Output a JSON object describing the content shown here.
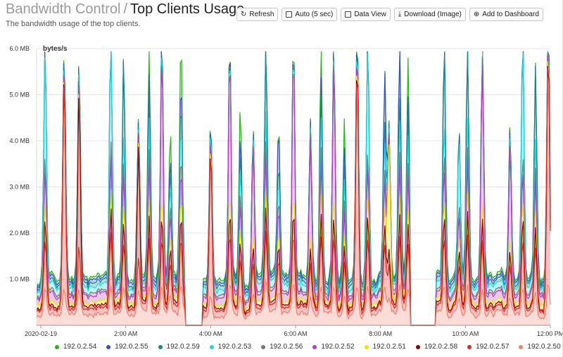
{
  "header": {
    "crumb": "Bandwidth Control",
    "separator": "/",
    "title": "Top Clients Usage",
    "subtitle": "The bandwidth usage of the top clients."
  },
  "toolbar": {
    "refresh": "Refresh",
    "auto": "Auto (5 sec)",
    "data_view": "Data View",
    "download": "Download (Image)",
    "add_dashboard": "Add to Dashboard"
  },
  "chart_data": {
    "type": "area",
    "stacked": true,
    "ylabel": "bytes/s",
    "ylim": [
      0,
      6000000
    ],
    "y_ticks": [
      {
        "value": 1000000,
        "label": "1.0 MB"
      },
      {
        "value": 2000000,
        "label": "2.0 MB"
      },
      {
        "value": 3000000,
        "label": "3.0 MB"
      },
      {
        "value": 4000000,
        "label": "4.0 MB"
      },
      {
        "value": 5000000,
        "label": "5.0 MB"
      },
      {
        "value": 6000000,
        "label": "6.0 MB"
      }
    ],
    "xlim": [
      -0.1,
      12.0
    ],
    "x_ticks": [
      {
        "value": 0,
        "label": "2020-02-19"
      },
      {
        "value": 2,
        "label": "2:00 AM"
      },
      {
        "value": 4,
        "label": "4:00 AM"
      },
      {
        "value": 6,
        "label": "6:00 AM"
      },
      {
        "value": 8,
        "label": "8:00 AM"
      },
      {
        "value": 10,
        "label": "10:00 AM"
      },
      {
        "value": 12,
        "label": "12:00 PM"
      }
    ],
    "gaps": [
      [
        3.4,
        3.8
      ],
      [
        8.7,
        9.3
      ]
    ],
    "series": [
      {
        "name": "192.0.2.50",
        "color": "#f08070"
      },
      {
        "name": "192.0.2.57",
        "color": "#e8231c"
      },
      {
        "name": "192.0.2.58",
        "color": "#8b0000"
      },
      {
        "name": "192.0.2.51",
        "color": "#f5e400"
      },
      {
        "name": "192.0.2.52",
        "color": "#b23ec7"
      },
      {
        "name": "192.0.2.56",
        "color": "#777777"
      },
      {
        "name": "192.0.2.53",
        "color": "#17d9e6"
      },
      {
        "name": "192.0.2.59",
        "color": "#128a8a"
      },
      {
        "name": "192.0.2.55",
        "color": "#3a4bd8"
      },
      {
        "name": "192.0.2.54",
        "color": "#28b41c"
      }
    ],
    "legend_order": [
      "192.0.2.54",
      "192.0.2.55",
      "192.0.2.59",
      "192.0.2.53",
      "192.0.2.56",
      "192.0.2.52",
      "192.0.2.51",
      "192.0.2.58",
      "192.0.2.57",
      "192.0.2.50"
    ],
    "base_noise": [
      250000,
      120000,
      60000,
      80000,
      150000,
      60000,
      130000,
      80000,
      70000,
      60000
    ],
    "spikes": [
      {
        "x": 0.1,
        "h": 5200000,
        "s": 6
      },
      {
        "x": 0.55,
        "h": 5200000,
        "s": 1
      },
      {
        "x": 0.9,
        "h": 4800000,
        "s": 2
      },
      {
        "x": 1.65,
        "h": 5800000,
        "s": 6
      },
      {
        "x": 1.95,
        "h": 4900000,
        "s": 7
      },
      {
        "x": 2.3,
        "h": 3400000,
        "s": 2
      },
      {
        "x": 2.55,
        "h": 5400000,
        "s": 9
      },
      {
        "x": 2.85,
        "h": 5300000,
        "s": 4
      },
      {
        "x": 3.05,
        "h": 3200000,
        "s": 9
      },
      {
        "x": 3.3,
        "h": 5400000,
        "s": 9
      },
      {
        "x": 4.0,
        "h": 3500000,
        "s": 1
      },
      {
        "x": 4.45,
        "h": 5300000,
        "s": 4
      },
      {
        "x": 4.7,
        "h": 3900000,
        "s": 9
      },
      {
        "x": 5.0,
        "h": 3300000,
        "s": 4
      },
      {
        "x": 5.3,
        "h": 5400000,
        "s": 7
      },
      {
        "x": 5.6,
        "h": 3200000,
        "s": 8
      },
      {
        "x": 5.95,
        "h": 5300000,
        "s": 4
      },
      {
        "x": 6.35,
        "h": 3500000,
        "s": 4
      },
      {
        "x": 6.6,
        "h": 5400000,
        "s": 9
      },
      {
        "x": 6.9,
        "h": 5100000,
        "s": 4
      },
      {
        "x": 7.15,
        "h": 3500000,
        "s": 9
      },
      {
        "x": 7.45,
        "h": 5500000,
        "s": 1
      },
      {
        "x": 7.7,
        "h": 5400000,
        "s": 6
      },
      {
        "x": 8.1,
        "h": 4500000,
        "s": 8
      },
      {
        "x": 8.2,
        "h": 3500000,
        "s": 3
      },
      {
        "x": 8.45,
        "h": 5300000,
        "s": 8
      },
      {
        "x": 8.65,
        "h": 4800000,
        "s": 9
      },
      {
        "x": 9.05,
        "h": 5400000,
        "s": 1
      },
      {
        "x": 9.5,
        "h": 5100000,
        "s": 7
      },
      {
        "x": 9.85,
        "h": 3200000,
        "s": 6
      },
      {
        "x": 10.05,
        "h": 5400000,
        "s": 7
      },
      {
        "x": 10.4,
        "h": 5200000,
        "s": 4
      },
      {
        "x": 11.05,
        "h": 3300000,
        "s": 4
      },
      {
        "x": 11.35,
        "h": 5500000,
        "s": 6
      },
      {
        "x": 11.65,
        "h": 4600000,
        "s": 7
      },
      {
        "x": 11.95,
        "h": 5700000,
        "s": 1
      }
    ]
  }
}
